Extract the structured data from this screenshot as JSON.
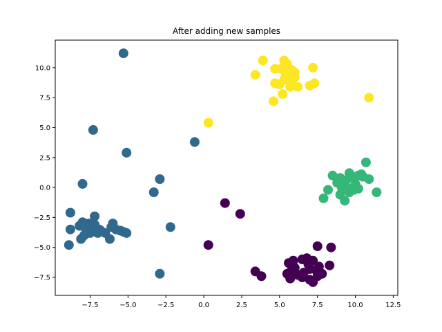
{
  "chart_data": {
    "type": "scatter",
    "title": "After adding new samples",
    "xlabel": "",
    "ylabel": "",
    "xlim": [
      -9.8,
      12.8
    ],
    "ylim": [
      -9.0,
      12.3
    ],
    "xticks": [
      -7.5,
      -5.0,
      -2.5,
      0.0,
      2.5,
      5.0,
      7.5,
      10.0,
      12.5
    ],
    "xtick_labels": [
      "−7.5",
      "−5.0",
      "−2.5",
      "0.0",
      "2.5",
      "5.0",
      "7.5",
      "10.0",
      "12.5"
    ],
    "yticks": [
      -7.5,
      -5.0,
      -2.5,
      0.0,
      2.5,
      5.0,
      7.5,
      10.0
    ],
    "ytick_labels": [
      "−7.5",
      "−5.0",
      "−2.5",
      "0.0",
      "2.5",
      "5.0",
      "7.5",
      "10.0"
    ],
    "grid": false,
    "series": [
      {
        "color": "#440154",
        "points": [
          [
            1.4,
            -1.3
          ],
          [
            2.4,
            -2.2
          ],
          [
            0.3,
            -4.8
          ],
          [
            7.5,
            -4.9
          ],
          [
            8.4,
            -5.0
          ],
          [
            3.4,
            -7.0
          ],
          [
            3.8,
            -7.4
          ],
          [
            5.6,
            -6.3
          ],
          [
            5.9,
            -6.1
          ],
          [
            6.5,
            -6.0
          ],
          [
            6.8,
            -5.9
          ],
          [
            7.2,
            -6.1
          ],
          [
            5.5,
            -7.2
          ],
          [
            5.8,
            -6.9
          ],
          [
            6.2,
            -7.3
          ],
          [
            6.6,
            -7.1
          ],
          [
            7.0,
            -6.8
          ],
          [
            7.4,
            -6.9
          ],
          [
            7.8,
            -7.2
          ],
          [
            8.3,
            -6.5
          ],
          [
            5.7,
            -7.6
          ],
          [
            6.5,
            -7.5
          ],
          [
            7.0,
            -7.7
          ],
          [
            7.5,
            -7.4
          ],
          [
            6.0,
            -6.7
          ],
          [
            6.9,
            -6.4
          ],
          [
            7.6,
            -6.6
          ],
          [
            7.2,
            -7.9
          ]
        ]
      },
      {
        "color": "#31688e",
        "points": [
          [
            -5.3,
            11.2
          ],
          [
            -7.3,
            4.8
          ],
          [
            -5.1,
            2.9
          ],
          [
            -0.6,
            3.8
          ],
          [
            -2.9,
            0.7
          ],
          [
            -3.3,
            -0.4
          ],
          [
            -8.0,
            0.3
          ],
          [
            -2.2,
            -3.3
          ],
          [
            -2.9,
            -7.2
          ],
          [
            -8.8,
            -2.1
          ],
          [
            -8.8,
            -3.5
          ],
          [
            -8.9,
            -4.8
          ],
          [
            -8.2,
            -3.2
          ],
          [
            -8.0,
            -2.9
          ],
          [
            -7.8,
            -3.4
          ],
          [
            -7.6,
            -3.0
          ],
          [
            -7.4,
            -3.6
          ],
          [
            -7.2,
            -3.3
          ],
          [
            -7.0,
            -3.8
          ],
          [
            -7.2,
            -2.4
          ],
          [
            -6.8,
            -3.6
          ],
          [
            -6.5,
            -3.8
          ],
          [
            -6.2,
            -4.3
          ],
          [
            -6.0,
            -3.0
          ],
          [
            -5.8,
            -3.5
          ],
          [
            -5.5,
            -3.6
          ],
          [
            -5.3,
            -3.7
          ],
          [
            -5.1,
            -3.8
          ],
          [
            -8.1,
            -4.3
          ],
          [
            -7.9,
            -4.0
          ],
          [
            -7.5,
            -3.8
          ],
          [
            -7.2,
            -3.1
          ],
          [
            -6.9,
            -3.5
          ],
          [
            -6.1,
            -3.3
          ]
        ]
      },
      {
        "color": "#35b779",
        "points": [
          [
            10.7,
            2.1
          ],
          [
            11.4,
            -0.4
          ],
          [
            10.9,
            0.7
          ],
          [
            8.5,
            1.0
          ],
          [
            8.2,
            -0.2
          ],
          [
            7.9,
            -0.9
          ],
          [
            8.8,
            0.4
          ],
          [
            9.0,
            0.8
          ],
          [
            9.2,
            0.3
          ],
          [
            9.4,
            0.6
          ],
          [
            9.6,
            1.2
          ],
          [
            9.8,
            0.9
          ],
          [
            10.0,
            0.3
          ],
          [
            10.2,
            1.0
          ],
          [
            10.4,
            1.1
          ],
          [
            9.0,
            -0.6
          ],
          [
            9.3,
            -1.1
          ],
          [
            9.6,
            -0.4
          ],
          [
            9.9,
            -0.2
          ],
          [
            10.2,
            -0.1
          ],
          [
            9.1,
            0.0
          ],
          [
            9.7,
            -0.1
          ],
          [
            10.5,
            0.9
          ]
        ]
      },
      {
        "color": "#fde725",
        "points": [
          [
            3.9,
            10.6
          ],
          [
            5.3,
            10.6
          ],
          [
            3.4,
            9.4
          ],
          [
            4.7,
            9.9
          ],
          [
            5.1,
            9.9
          ],
          [
            5.5,
            10.3
          ],
          [
            5.8,
            9.8
          ],
          [
            6.0,
            9.6
          ],
          [
            7.2,
            10.0
          ],
          [
            4.7,
            8.7
          ],
          [
            5.0,
            8.6
          ],
          [
            5.3,
            9.0
          ],
          [
            5.6,
            9.2
          ],
          [
            5.8,
            8.8
          ],
          [
            6.0,
            9.2
          ],
          [
            5.7,
            8.4
          ],
          [
            6.2,
            8.4
          ],
          [
            7.0,
            8.5
          ],
          [
            7.3,
            8.7
          ],
          [
            5.2,
            7.8
          ],
          [
            4.6,
            7.2
          ],
          [
            10.9,
            7.5
          ],
          [
            0.3,
            5.4
          ],
          [
            5.4,
            9.5
          ]
        ]
      }
    ]
  }
}
